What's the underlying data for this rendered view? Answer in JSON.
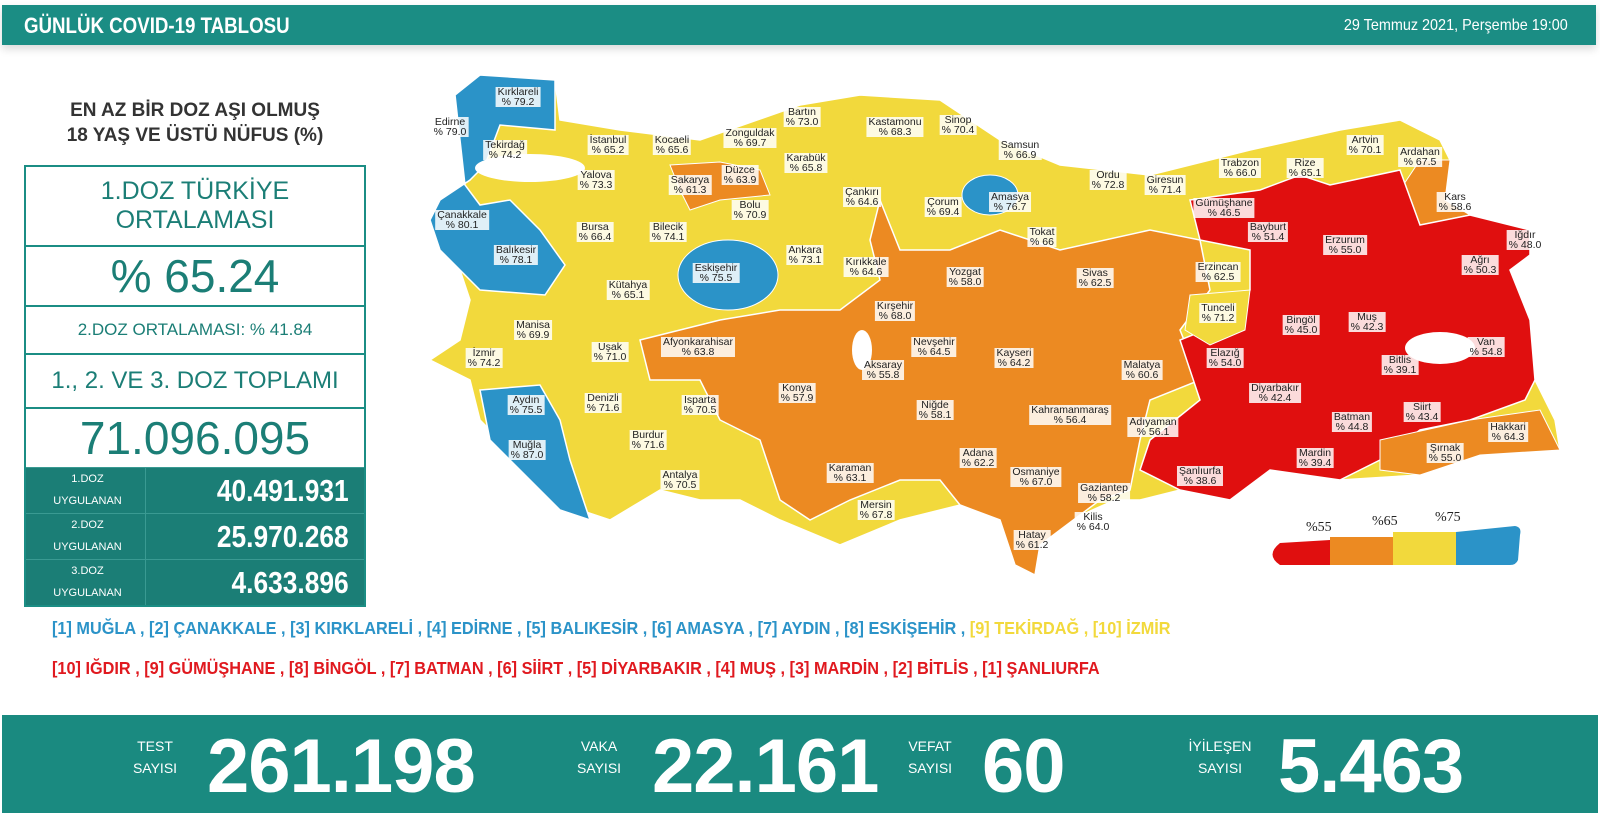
{
  "header": {
    "title": "GÜNLÜK COVID-19 TABLOSU",
    "date": "29 Temmuz 2021, Perşembe 19:00"
  },
  "panel": {
    "title_line1": "EN AZ BİR DOZ AŞI OLMUŞ",
    "title_line2": "18 YAŞ VE ÜSTÜ NÜFUS (%)",
    "avg_label_line1": "1.DOZ TÜRKİYE",
    "avg_label_line2": "ORTALAMASI",
    "avg_value": "% 65.24",
    "dose2_avg": "2.DOZ ORTALAMASI: % 41.84",
    "total_label": "1., 2. VE 3. DOZ TOPLAMI",
    "total_value": "71.096.095",
    "doses": [
      {
        "label1": "1.DOZ",
        "label2": "UYGULANAN",
        "value": "40.491.931"
      },
      {
        "label1": "2.DOZ",
        "label2": "UYGULANAN",
        "value": "25.970.268"
      },
      {
        "label1": "3.DOZ",
        "label2": "UYGULANAN",
        "value": "4.633.896"
      }
    ]
  },
  "colors": {
    "teal": "#1b8d84",
    "red": "#e00f0f",
    "orange": "#ec8a22",
    "yellow": "#f2d93c",
    "blue": "#2b93c8"
  },
  "legend": {
    "t1": "%55",
    "t2": "%65",
    "t3": "%75"
  },
  "provinces": [
    {
      "name": "Edirne",
      "value": "% 79.0"
    },
    {
      "name": "Kırklareli",
      "value": "% 79.2"
    },
    {
      "name": "Tekirdağ",
      "value": "% 74.2"
    },
    {
      "name": "İstanbul",
      "value": "% 65.2"
    },
    {
      "name": "Kocaeli",
      "value": "% 65.6"
    },
    {
      "name": "Zonguldak",
      "value": "% 69.7"
    },
    {
      "name": "Bartın",
      "value": "% 73.0"
    },
    {
      "name": "Kastamonu",
      "value": "% 68.3"
    },
    {
      "name": "Sinop",
      "value": "% 70.4"
    },
    {
      "name": "Samsun",
      "value": "% 66.9"
    },
    {
      "name": "Artvin",
      "value": "% 70.1"
    },
    {
      "name": "Ardahan",
      "value": "% 67.5"
    },
    {
      "name": "Trabzon",
      "value": "% 66.0"
    },
    {
      "name": "Rize",
      "value": "% 65.1"
    },
    {
      "name": "Ordu",
      "value": "% 72.8"
    },
    {
      "name": "Giresun",
      "value": "% 71.4"
    },
    {
      "name": "Yalova",
      "value": "% 73.3"
    },
    {
      "name": "Sakarya",
      "value": "% 61.3"
    },
    {
      "name": "Düzce",
      "value": "% 63.9"
    },
    {
      "name": "Karabük",
      "value": "% 65.8"
    },
    {
      "name": "Çankırı",
      "value": "% 64.6"
    },
    {
      "name": "Çorum",
      "value": "% 69.4"
    },
    {
      "name": "Amasya",
      "value": "% 76.7"
    },
    {
      "name": "Tokat",
      "value": "% 66"
    },
    {
      "name": "Gümüşhane",
      "value": "% 46.5"
    },
    {
      "name": "Bayburt",
      "value": "% 51.4"
    },
    {
      "name": "Erzurum",
      "value": "% 55.0"
    },
    {
      "name": "Kars",
      "value": "% 58.6"
    },
    {
      "name": "Iğdır",
      "value": "% 48.0"
    },
    {
      "name": "Ağrı",
      "value": "% 50.3"
    },
    {
      "name": "Çanakkale",
      "value": "% 80.1"
    },
    {
      "name": "Balıkesir",
      "value": "% 78.1"
    },
    {
      "name": "Bursa",
      "value": "% 66.4"
    },
    {
      "name": "Bilecik",
      "value": "% 74.1"
    },
    {
      "name": "Bolu",
      "value": "% 70.9"
    },
    {
      "name": "Ankara",
      "value": "% 73.1"
    },
    {
      "name": "Kırıkkale",
      "value": "% 64.6"
    },
    {
      "name": "Eskişehir",
      "value": "% 75.5"
    },
    {
      "name": "Kütahya",
      "value": "% 65.1"
    },
    {
      "name": "Yozgat",
      "value": "% 58.0"
    },
    {
      "name": "Sivas",
      "value": "% 62.5"
    },
    {
      "name": "Erzincan",
      "value": "% 62.5"
    },
    {
      "name": "Tunceli",
      "value": "% 71.2"
    },
    {
      "name": "Bingöl",
      "value": "% 45.0"
    },
    {
      "name": "Muş",
      "value": "% 42.3"
    },
    {
      "name": "Kırşehir",
      "value": "% 68.0"
    },
    {
      "name": "Manisa",
      "value": "% 69.9"
    },
    {
      "name": "Uşak",
      "value": "% 71.0"
    },
    {
      "name": "Afyonkarahisar",
      "value": "% 63.8"
    },
    {
      "name": "Nevşehir",
      "value": "% 64.5"
    },
    {
      "name": "Kayseri",
      "value": "% 64.2"
    },
    {
      "name": "Elazığ",
      "value": "% 54.0"
    },
    {
      "name": "Malatya",
      "value": "% 60.6"
    },
    {
      "name": "Van",
      "value": "% 54.8"
    },
    {
      "name": "Bitlis",
      "value": "% 39.1"
    },
    {
      "name": "İzmir",
      "value": "% 74.2"
    },
    {
      "name": "Aksaray",
      "value": "% 55.8"
    },
    {
      "name": "Konya",
      "value": "% 57.9"
    },
    {
      "name": "Diyarbakır",
      "value": "% 42.4"
    },
    {
      "name": "Aydın",
      "value": "% 75.5"
    },
    {
      "name": "Denizli",
      "value": "% 71.6"
    },
    {
      "name": "Isparta",
      "value": "% 70.5"
    },
    {
      "name": "Niğde",
      "value": "% 58.1"
    },
    {
      "name": "Kahramanmaraş",
      "value": "% 56.4"
    },
    {
      "name": "Adıyaman",
      "value": "% 56.1"
    },
    {
      "name": "Batman",
      "value": "% 44.8"
    },
    {
      "name": "Siirt",
      "value": "% 43.4"
    },
    {
      "name": "Hakkari",
      "value": "% 64.3"
    },
    {
      "name": "Muğla",
      "value": "% 87.0"
    },
    {
      "name": "Burdur",
      "value": "% 71.6"
    },
    {
      "name": "Adana",
      "value": "% 62.2"
    },
    {
      "name": "Osmaniye",
      "value": "% 67.0"
    },
    {
      "name": "Mardin",
      "value": "% 39.4"
    },
    {
      "name": "Şırnak",
      "value": "% 55.0"
    },
    {
      "name": "Şanlıurfa",
      "value": "% 38.6"
    },
    {
      "name": "Antalya",
      "value": "% 70.5"
    },
    {
      "name": "Karaman",
      "value": "% 63.1"
    },
    {
      "name": "Gaziantep",
      "value": "% 58.2"
    },
    {
      "name": "Mersin",
      "value": "% 67.8"
    },
    {
      "name": "Kilis",
      "value": "% 64.0"
    },
    {
      "name": "Hatay",
      "value": "% 61.2"
    }
  ],
  "top_list": {
    "blue": "[1] MUĞLA , [2] ÇANAKKALE , [3] KIRKLARELİ , [4] EDİRNE , [5] BALIKESİR , [6] AMASYA , [7] AYDIN , [8] ESKİŞEHİR , ",
    "yellow": "[9] TEKİRDAĞ , [10] İZMİR"
  },
  "bottom_list": "[10] IĞDIR , [9] GÜMÜŞHANE , [8] BİNGÖL , [7] BATMAN , [6] SİİRT , [5] DİYARBAKIR , [4] MUŞ , [3] MARDİN , [2] BİTLİS , [1] ŞANLIURFA",
  "stats": {
    "test": {
      "l1": "TEST",
      "l2": "SAYISI",
      "value": "261.198"
    },
    "vaka": {
      "l1": "VAKA",
      "l2": "SAYISI",
      "value": "22.161"
    },
    "vefat": {
      "l1": "VEFAT",
      "l2": "SAYISI",
      "value": "60"
    },
    "iyilesen": {
      "l1": "İYİLEŞEN",
      "l2": "SAYISI",
      "value": "5.463"
    }
  }
}
